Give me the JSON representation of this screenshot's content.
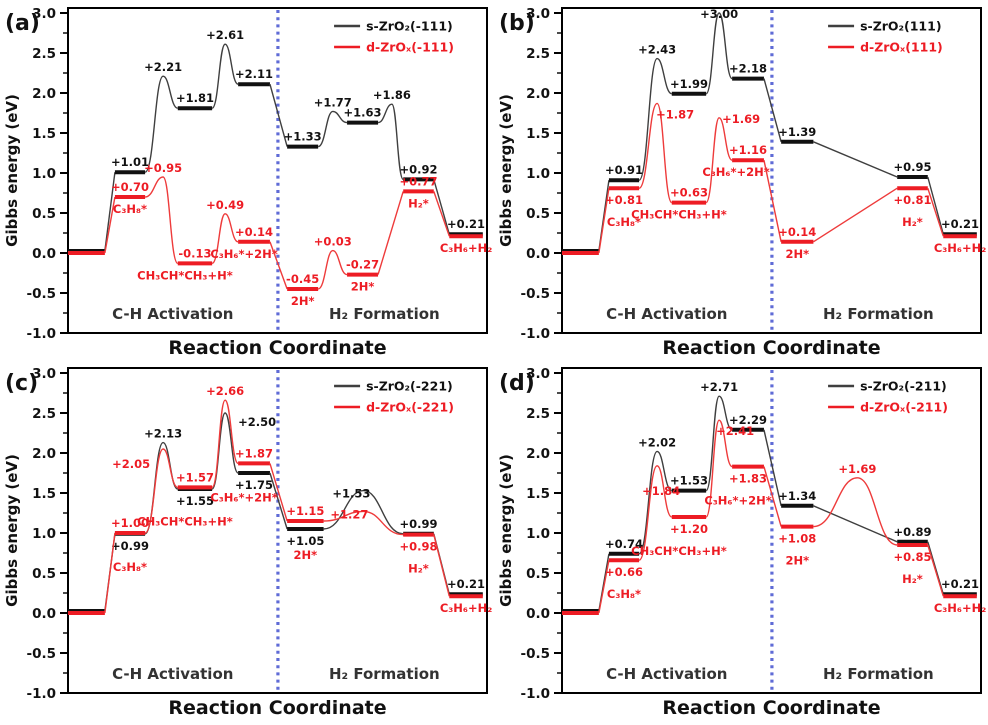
{
  "figure": {
    "colors": {
      "series_s": "#111111",
      "series_s_connector": "#3f3f3f",
      "series_d": "#ed1c24",
      "series_d_connector": "#ee3b3b",
      "divider": "#5f6bd6",
      "section_label": "#333333",
      "axis": "#000000"
    }
  },
  "axis": {
    "ylabel": "Gibbs energy (eV)",
    "xlabel": "Reaction Coordinate",
    "ylim": [
      -1.0,
      3.0
    ],
    "ytick_step": 0.5,
    "yminor_step": 0.25,
    "yticks": [
      "3.0",
      "2.5",
      "2.0",
      "1.5",
      "1.0",
      "0.5",
      "0.0",
      "-0.5",
      "-1.0"
    ]
  },
  "sections": {
    "left": "C-H Activation",
    "right": "H₂ Formation",
    "divider_x": 0.501
  },
  "chart_data": [
    {
      "id": "a",
      "type": "line",
      "panel_label": "(a)",
      "legend": [
        {
          "label": "s-ZrO₂(-111)",
          "series": "s"
        },
        {
          "label": "d-ZrOₓ(-111)",
          "series": "d"
        }
      ],
      "series": [
        {
          "key": "s",
          "name": "s-ZrO₂(-111)",
          "nodes": [
            {
              "t": "L",
              "x": [
                0,
                0.088
              ],
              "v": 0.0,
              "nolab": true,
              "dy": -2
            },
            {
              "t": "L",
              "x": [
                0.112,
                0.184
              ],
              "v": 1.01
            },
            {
              "t": "T",
              "x": 0.227,
              "v": 2.21
            },
            {
              "t": "L",
              "x": [
                0.262,
                0.344
              ],
              "v": 1.81
            },
            {
              "t": "T",
              "x": 0.375,
              "v": 2.61
            },
            {
              "t": "L",
              "x": [
                0.406,
                0.482
              ],
              "v": 2.11
            },
            {
              "t": "L",
              "x": [
                0.523,
                0.597
              ],
              "v": 1.33
            },
            {
              "t": "T",
              "x": 0.632,
              "v": 1.77
            },
            {
              "t": "L",
              "x": [
                0.666,
                0.74
              ],
              "v": 1.63
            },
            {
              "t": "T",
              "x": 0.773,
              "v": 1.86
            },
            {
              "t": "L",
              "x": [
                0.8,
                0.873
              ],
              "v": 0.92
            },
            {
              "t": "L",
              "x": [
                0.91,
                0.99
              ],
              "v": 0.21,
              "dy": -2
            }
          ]
        },
        {
          "key": "d",
          "name": "d-ZrOₓ(-111)",
          "nodes": [
            {
              "t": "L",
              "x": [
                0,
                0.088
              ],
              "v": 0.0,
              "nolab": true
            },
            {
              "t": "L",
              "x": [
                0.112,
                0.184
              ],
              "v": 0.7,
              "sp": "C₃H₈*"
            },
            {
              "t": "T",
              "x": 0.227,
              "v": 0.95
            },
            {
              "t": "L",
              "x": [
                0.262,
                0.344
              ],
              "v": -0.13,
              "sp": "CH₃CH*CH₃+H*",
              "sxo": -10
            },
            {
              "t": "T",
              "x": 0.375,
              "v": 0.49
            },
            {
              "t": "L",
              "x": [
                0.406,
                0.482
              ],
              "v": 0.14,
              "sp": "C₃H₆*+2H*",
              "sxo": -10
            },
            {
              "t": "L",
              "x": [
                0.523,
                0.597
              ],
              "v": -0.45,
              "sp": "2H*"
            },
            {
              "t": "T",
              "x": 0.632,
              "v": 0.03
            },
            {
              "t": "L",
              "x": [
                0.666,
                0.74
              ],
              "v": -0.27,
              "sp": "2H*"
            },
            {
              "t": "L",
              "x": [
                0.8,
                0.873
              ],
              "v": 0.77,
              "sp": "H₂*"
            },
            {
              "t": "L",
              "x": [
                0.91,
                0.99
              ],
              "v": 0.21,
              "nolab": true,
              "sp": "C₃H₆+H₂"
            }
          ]
        }
      ]
    },
    {
      "id": "b",
      "type": "line",
      "panel_label": "(b)",
      "legend": [
        {
          "label": "s-ZrO₂(111)",
          "series": "s"
        },
        {
          "label": "d-ZrOₓ(111)",
          "series": "d"
        }
      ],
      "series": [
        {
          "key": "s",
          "name": "s-ZrO₂(111)",
          "nodes": [
            {
              "t": "L",
              "x": [
                0,
                0.088
              ],
              "v": 0.0,
              "nolab": true,
              "dy": -2
            },
            {
              "t": "L",
              "x": [
                0.112,
                0.184
              ],
              "v": 0.91
            },
            {
              "t": "T",
              "x": 0.227,
              "v": 2.43
            },
            {
              "t": "L",
              "x": [
                0.262,
                0.344
              ],
              "v": 1.99
            },
            {
              "t": "T",
              "x": 0.375,
              "v": 3.0,
              "lyo": 10
            },
            {
              "t": "L",
              "x": [
                0.406,
                0.482
              ],
              "v": 2.18
            },
            {
              "t": "L",
              "x": [
                0.523,
                0.6
              ],
              "v": 1.39
            },
            {
              "t": "L",
              "x": [
                0.8,
                0.873
              ],
              "v": 0.95
            },
            {
              "t": "L",
              "x": [
                0.91,
                0.99
              ],
              "v": 0.21,
              "dy": -2
            }
          ]
        },
        {
          "key": "d",
          "name": "d-ZrOₓ(111)",
          "nodes": [
            {
              "t": "L",
              "x": [
                0,
                0.088
              ],
              "v": 0.0,
              "nolab": true
            },
            {
              "t": "L",
              "x": [
                0.112,
                0.184
              ],
              "v": 0.81,
              "vp": "b",
              "sp": "C₃H₈*",
              "spdy": 38
            },
            {
              "t": "T",
              "x": 0.227,
              "v": 1.87,
              "lxo": 18,
              "lyo": 20
            },
            {
              "t": "L",
              "x": [
                0.262,
                0.344
              ],
              "v": 0.63,
              "sp": "CH₃CH*CH₃+H*",
              "sxo": -10
            },
            {
              "t": "T",
              "x": 0.375,
              "v": 1.69,
              "lxo": 22,
              "lyo": 10
            },
            {
              "t": "L",
              "x": [
                0.406,
                0.482
              ],
              "v": 1.16,
              "sp": "C₃H₆*+2H*",
              "sxo": -12
            },
            {
              "t": "L",
              "x": [
                0.523,
                0.6
              ],
              "v": 0.14,
              "sp": "2H*"
            },
            {
              "t": "L",
              "x": [
                0.8,
                0.873
              ],
              "v": 0.81,
              "vp": "b",
              "sp": "H₂*",
              "spdy": 38
            },
            {
              "t": "L",
              "x": [
                0.91,
                0.99
              ],
              "v": 0.21,
              "nolab": true,
              "sp": "C₃H₆+H₂"
            }
          ]
        }
      ]
    },
    {
      "id": "c",
      "type": "line",
      "panel_label": "(c)",
      "legend": [
        {
          "label": "s-ZrO₂(-221)",
          "series": "s"
        },
        {
          "label": "d-ZrOₓ(-221)",
          "series": "d"
        }
      ],
      "series": [
        {
          "key": "s",
          "name": "s-ZrO₂(-221)",
          "nodes": [
            {
              "t": "L",
              "x": [
                0,
                0.088
              ],
              "v": 0.0,
              "nolab": true,
              "dy": -2
            },
            {
              "t": "L",
              "x": [
                0.112,
                0.184
              ],
              "v": 0.99,
              "vp": "b"
            },
            {
              "t": "T",
              "x": 0.227,
              "v": 2.13
            },
            {
              "t": "L",
              "x": [
                0.262,
                0.344
              ],
              "v": 1.55,
              "vp": "b"
            },
            {
              "t": "T",
              "x": 0.375,
              "v": 2.5,
              "lxo": 32,
              "lyo": 18
            },
            {
              "t": "L",
              "x": [
                0.406,
                0.482
              ],
              "v": 1.75,
              "vp": "b"
            },
            {
              "t": "L",
              "x": [
                0.523,
                0.61
              ],
              "v": 1.05,
              "vp": "b"
            },
            {
              "t": "T",
              "x": 0.705,
              "v": 1.53,
              "lxo": -12,
              "lyo": 12
            },
            {
              "t": "L",
              "x": [
                0.8,
                0.873
              ],
              "v": 0.99
            },
            {
              "t": "L",
              "x": [
                0.91,
                0.99
              ],
              "v": 0.21,
              "dy": -2
            }
          ]
        },
        {
          "key": "d",
          "name": "d-ZrOₓ(-221)",
          "nodes": [
            {
              "t": "L",
              "x": [
                0,
                0.088
              ],
              "v": 0.0,
              "nolab": true
            },
            {
              "t": "L",
              "x": [
                0.112,
                0.184
              ],
              "v": 1.0,
              "sp": "C₃H₈*",
              "spdy": 38
            },
            {
              "t": "T",
              "x": 0.227,
              "v": 2.05,
              "lxo": -32,
              "lyo": 24
            },
            {
              "t": "L",
              "x": [
                0.262,
                0.344
              ],
              "v": 1.57,
              "sp": "CH₃CH*CH₃+H*",
              "sxo": -10,
              "spdy": 38
            },
            {
              "t": "T",
              "x": 0.375,
              "v": 2.66
            },
            {
              "t": "L",
              "x": [
                0.406,
                0.482
              ],
              "v": 1.87,
              "sp": "C₃H₆*+2H*",
              "sxo": -10,
              "spdy": 38
            },
            {
              "t": "L",
              "x": [
                0.523,
                0.61
              ],
              "v": 1.15,
              "sp": "2H*",
              "spdy": 38
            },
            {
              "t": "T",
              "x": 0.705,
              "v": 1.27,
              "lxo": -14,
              "lyo": 12
            },
            {
              "t": "L",
              "x": [
                0.8,
                0.873
              ],
              "v": 0.98,
              "vp": "b",
              "sp": "H₂*",
              "spdy": 38
            },
            {
              "t": "L",
              "x": [
                0.91,
                0.99
              ],
              "v": 0.21,
              "nolab": true,
              "sp": "C₃H₆+H₂"
            }
          ]
        }
      ]
    },
    {
      "id": "d",
      "type": "line",
      "panel_label": "(d)",
      "legend": [
        {
          "label": "s-ZrO₂(-211)",
          "series": "s"
        },
        {
          "label": "d-ZrOₓ(-211)",
          "series": "d"
        }
      ],
      "series": [
        {
          "key": "s",
          "name": "s-ZrO₂(-211)",
          "nodes": [
            {
              "t": "L",
              "x": [
                0,
                0.088
              ],
              "v": 0.0,
              "nolab": true,
              "dy": -2
            },
            {
              "t": "L",
              "x": [
                0.112,
                0.184
              ],
              "v": 0.74
            },
            {
              "t": "T",
              "x": 0.227,
              "v": 2.02
            },
            {
              "t": "L",
              "x": [
                0.262,
                0.344
              ],
              "v": 1.53
            },
            {
              "t": "T",
              "x": 0.375,
              "v": 2.71
            },
            {
              "t": "L",
              "x": [
                0.406,
                0.482
              ],
              "v": 2.29
            },
            {
              "t": "L",
              "x": [
                0.523,
                0.6
              ],
              "v": 1.34
            },
            {
              "t": "L",
              "x": [
                0.8,
                0.873
              ],
              "v": 0.89
            },
            {
              "t": "L",
              "x": [
                0.91,
                0.99
              ],
              "v": 0.21,
              "dy": -2
            }
          ]
        },
        {
          "key": "d",
          "name": "d-ZrOₓ(-211)",
          "nodes": [
            {
              "t": "L",
              "x": [
                0,
                0.088
              ],
              "v": 0.0,
              "nolab": true
            },
            {
              "t": "L",
              "x": [
                0.112,
                0.184
              ],
              "v": 0.66,
              "vp": "b",
              "sp": "C₃H₈*",
              "spdy": 38
            },
            {
              "t": "T",
              "x": 0.227,
              "v": 1.84,
              "lxo": 4,
              "lyo": 34
            },
            {
              "t": "L",
              "x": [
                0.262,
                0.344
              ],
              "v": 1.2,
              "vp": "b",
              "sp": "CH₃CH*CH₃+H*",
              "sxo": -10,
              "spdy": 38
            },
            {
              "t": "T",
              "x": 0.375,
              "v": 2.41,
              "lxo": 16,
              "lyo": 20
            },
            {
              "t": "L",
              "x": [
                0.406,
                0.482
              ],
              "v": 1.83,
              "vp": "b",
              "sp": "C₃H₆*+2H*",
              "sxo": -10,
              "spdy": 38
            },
            {
              "t": "L",
              "x": [
                0.523,
                0.6
              ],
              "v": 1.08,
              "vp": "b",
              "sp": "2H*",
              "spdy": 38
            },
            {
              "t": "T",
              "x": 0.705,
              "v": 1.69
            },
            {
              "t": "L",
              "x": [
                0.8,
                0.873
              ],
              "v": 0.85,
              "vp": "b",
              "sp": "H₂*",
              "spdy": 38
            },
            {
              "t": "L",
              "x": [
                0.91,
                0.99
              ],
              "v": 0.21,
              "nolab": true,
              "sp": "C₃H₆+H₂"
            }
          ]
        }
      ]
    }
  ]
}
